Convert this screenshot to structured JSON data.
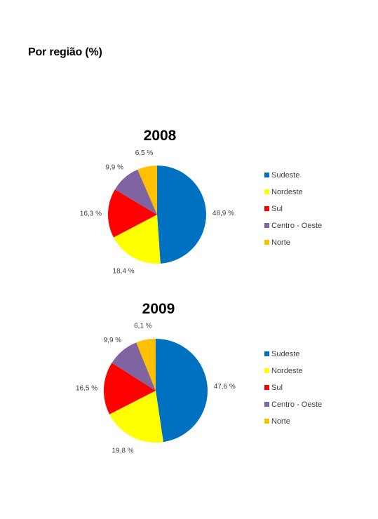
{
  "page": {
    "heading": "Por região (%)"
  },
  "colors": {
    "Sudeste": "#0070c0",
    "Nordeste": "#ffff00",
    "Sul": "#ff0000",
    "Centro - Oeste": "#8064a2",
    "Norte": "#ffc000"
  },
  "chart_data": [
    {
      "type": "pie",
      "title": "2008",
      "legend_position": "right",
      "categories": [
        "Sudeste",
        "Nordeste",
        "Sul",
        "Centro - Oeste",
        "Norte"
      ],
      "values": [
        48.9,
        18.4,
        16.3,
        9.9,
        6.5
      ],
      "labels": [
        "48,9 %",
        "18,4 %",
        "16,3 %",
        "9,9 %",
        "6,5 %"
      ]
    },
    {
      "type": "pie",
      "title": "2009",
      "legend_position": "right",
      "categories": [
        "Sudeste",
        "Nordeste",
        "Sul",
        "Centro - Oeste",
        "Norte"
      ],
      "values": [
        47.6,
        19.8,
        16.5,
        9.9,
        6.1
      ],
      "labels": [
        "47,6 %",
        "19,8 %",
        "16,5 %",
        "9,9 %",
        "6,1 %"
      ]
    }
  ]
}
